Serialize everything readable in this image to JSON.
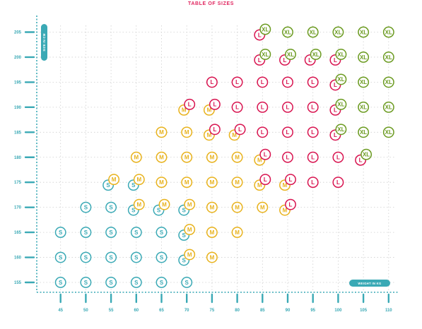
{
  "chart_data": {
    "type": "scatter",
    "title": "TABLE OF SIZES",
    "xlabel": "WEIGHT IN KG",
    "ylabel": "SIZE IN CM",
    "x_ticks": [
      45,
      50,
      55,
      60,
      65,
      70,
      75,
      80,
      85,
      90,
      95,
      100,
      105,
      110
    ],
    "y_ticks": [
      155,
      160,
      165,
      170,
      175,
      180,
      185,
      190,
      195,
      200,
      205
    ],
    "xlim": [
      42,
      111
    ],
    "ylim": [
      153,
      207
    ],
    "grid": true,
    "colors": {
      "S": "#3aa9b5",
      "M": "#e8b21c",
      "L": "#d8134f",
      "XL": "#6a9a1f",
      "axis": "#3aa9b5",
      "title": "#e0245e"
    },
    "series": [
      {
        "name": "S",
        "points": [
          [
            45,
            165
          ],
          [
            45,
            160
          ],
          [
            45,
            155
          ],
          [
            50,
            170
          ],
          [
            50,
            165
          ],
          [
            50,
            160
          ],
          [
            50,
            155
          ],
          [
            55,
            175
          ],
          [
            55,
            170
          ],
          [
            55,
            165
          ],
          [
            55,
            160
          ],
          [
            55,
            155
          ],
          [
            60,
            175
          ],
          [
            60,
            170
          ],
          [
            60,
            165
          ],
          [
            60,
            160
          ],
          [
            60,
            155
          ],
          [
            65,
            170
          ],
          [
            65,
            165
          ],
          [
            65,
            160
          ],
          [
            65,
            155
          ],
          [
            70,
            170
          ],
          [
            70,
            165
          ],
          [
            70,
            160
          ],
          [
            70,
            155
          ]
        ]
      },
      {
        "name": "M",
        "points": [
          [
            55,
            175
          ],
          [
            60,
            180
          ],
          [
            60,
            175
          ],
          [
            60,
            170
          ],
          [
            65,
            185
          ],
          [
            65,
            180
          ],
          [
            65,
            175
          ],
          [
            65,
            170
          ],
          [
            70,
            190
          ],
          [
            70,
            185
          ],
          [
            70,
            180
          ],
          [
            70,
            175
          ],
          [
            70,
            170
          ],
          [
            70,
            165
          ],
          [
            70,
            160
          ],
          [
            75,
            190
          ],
          [
            75,
            185
          ],
          [
            75,
            180
          ],
          [
            75,
            175
          ],
          [
            75,
            170
          ],
          [
            75,
            165
          ],
          [
            75,
            160
          ],
          [
            80,
            185
          ],
          [
            80,
            180
          ],
          [
            80,
            175
          ],
          [
            80,
            170
          ],
          [
            80,
            165
          ],
          [
            85,
            180
          ],
          [
            85,
            175
          ],
          [
            85,
            170
          ],
          [
            90,
            175
          ],
          [
            90,
            170
          ]
        ]
      },
      {
        "name": "L",
        "points": [
          [
            70,
            190
          ],
          [
            75,
            195
          ],
          [
            75,
            190
          ],
          [
            75,
            185
          ],
          [
            80,
            195
          ],
          [
            80,
            190
          ],
          [
            80,
            185
          ],
          [
            85,
            205
          ],
          [
            85,
            200
          ],
          [
            85,
            195
          ],
          [
            85,
            190
          ],
          [
            85,
            185
          ],
          [
            85,
            180
          ],
          [
            85,
            175
          ],
          [
            90,
            200
          ],
          [
            90,
            195
          ],
          [
            90,
            190
          ],
          [
            90,
            185
          ],
          [
            90,
            180
          ],
          [
            90,
            175
          ],
          [
            90,
            170
          ],
          [
            95,
            200
          ],
          [
            95,
            195
          ],
          [
            95,
            190
          ],
          [
            95,
            185
          ],
          [
            95,
            180
          ],
          [
            95,
            175
          ],
          [
            100,
            200
          ],
          [
            100,
            195
          ],
          [
            100,
            190
          ],
          [
            100,
            185
          ],
          [
            100,
            180
          ],
          [
            100,
            175
          ],
          [
            105,
            180
          ]
        ]
      },
      {
        "name": "XL",
        "points": [
          [
            85,
            205
          ],
          [
            85,
            200
          ],
          [
            90,
            205
          ],
          [
            90,
            200
          ],
          [
            95,
            205
          ],
          [
            95,
            200
          ],
          [
            100,
            205
          ],
          [
            100,
            200
          ],
          [
            100,
            195
          ],
          [
            100,
            190
          ],
          [
            100,
            185
          ],
          [
            105,
            205
          ],
          [
            105,
            200
          ],
          [
            105,
            195
          ],
          [
            105,
            190
          ],
          [
            105,
            185
          ],
          [
            105,
            180
          ],
          [
            110,
            205
          ],
          [
            110,
            200
          ],
          [
            110,
            195
          ],
          [
            110,
            190
          ],
          [
            110,
            185
          ]
        ]
      }
    ]
  }
}
